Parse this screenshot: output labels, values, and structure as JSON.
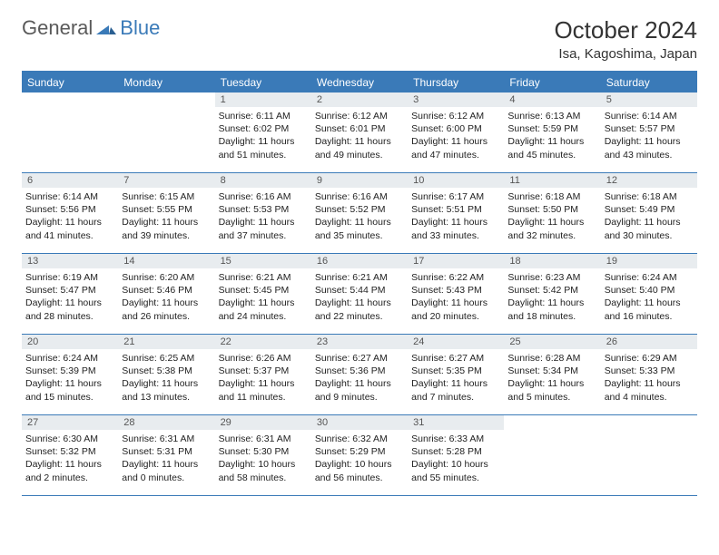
{
  "brand": {
    "part1": "General",
    "part2": "Blue"
  },
  "title": "October 2024",
  "location": "Isa, Kagoshima, Japan",
  "colors": {
    "header_bg": "#3a7ab8",
    "daynum_bg": "#e8ecef",
    "border": "#3a7ab8",
    "text": "#222222",
    "title_text": "#333333"
  },
  "day_names": [
    "Sunday",
    "Monday",
    "Tuesday",
    "Wednesday",
    "Thursday",
    "Friday",
    "Saturday"
  ],
  "weeks": [
    [
      null,
      null,
      {
        "n": "1",
        "sr": "Sunrise: 6:11 AM",
        "ss": "Sunset: 6:02 PM",
        "dl1": "Daylight: 11 hours",
        "dl2": "and 51 minutes."
      },
      {
        "n": "2",
        "sr": "Sunrise: 6:12 AM",
        "ss": "Sunset: 6:01 PM",
        "dl1": "Daylight: 11 hours",
        "dl2": "and 49 minutes."
      },
      {
        "n": "3",
        "sr": "Sunrise: 6:12 AM",
        "ss": "Sunset: 6:00 PM",
        "dl1": "Daylight: 11 hours",
        "dl2": "and 47 minutes."
      },
      {
        "n": "4",
        "sr": "Sunrise: 6:13 AM",
        "ss": "Sunset: 5:59 PM",
        "dl1": "Daylight: 11 hours",
        "dl2": "and 45 minutes."
      },
      {
        "n": "5",
        "sr": "Sunrise: 6:14 AM",
        "ss": "Sunset: 5:57 PM",
        "dl1": "Daylight: 11 hours",
        "dl2": "and 43 minutes."
      }
    ],
    [
      {
        "n": "6",
        "sr": "Sunrise: 6:14 AM",
        "ss": "Sunset: 5:56 PM",
        "dl1": "Daylight: 11 hours",
        "dl2": "and 41 minutes."
      },
      {
        "n": "7",
        "sr": "Sunrise: 6:15 AM",
        "ss": "Sunset: 5:55 PM",
        "dl1": "Daylight: 11 hours",
        "dl2": "and 39 minutes."
      },
      {
        "n": "8",
        "sr": "Sunrise: 6:16 AM",
        "ss": "Sunset: 5:53 PM",
        "dl1": "Daylight: 11 hours",
        "dl2": "and 37 minutes."
      },
      {
        "n": "9",
        "sr": "Sunrise: 6:16 AM",
        "ss": "Sunset: 5:52 PM",
        "dl1": "Daylight: 11 hours",
        "dl2": "and 35 minutes."
      },
      {
        "n": "10",
        "sr": "Sunrise: 6:17 AM",
        "ss": "Sunset: 5:51 PM",
        "dl1": "Daylight: 11 hours",
        "dl2": "and 33 minutes."
      },
      {
        "n": "11",
        "sr": "Sunrise: 6:18 AM",
        "ss": "Sunset: 5:50 PM",
        "dl1": "Daylight: 11 hours",
        "dl2": "and 32 minutes."
      },
      {
        "n": "12",
        "sr": "Sunrise: 6:18 AM",
        "ss": "Sunset: 5:49 PM",
        "dl1": "Daylight: 11 hours",
        "dl2": "and 30 minutes."
      }
    ],
    [
      {
        "n": "13",
        "sr": "Sunrise: 6:19 AM",
        "ss": "Sunset: 5:47 PM",
        "dl1": "Daylight: 11 hours",
        "dl2": "and 28 minutes."
      },
      {
        "n": "14",
        "sr": "Sunrise: 6:20 AM",
        "ss": "Sunset: 5:46 PM",
        "dl1": "Daylight: 11 hours",
        "dl2": "and 26 minutes."
      },
      {
        "n": "15",
        "sr": "Sunrise: 6:21 AM",
        "ss": "Sunset: 5:45 PM",
        "dl1": "Daylight: 11 hours",
        "dl2": "and 24 minutes."
      },
      {
        "n": "16",
        "sr": "Sunrise: 6:21 AM",
        "ss": "Sunset: 5:44 PM",
        "dl1": "Daylight: 11 hours",
        "dl2": "and 22 minutes."
      },
      {
        "n": "17",
        "sr": "Sunrise: 6:22 AM",
        "ss": "Sunset: 5:43 PM",
        "dl1": "Daylight: 11 hours",
        "dl2": "and 20 minutes."
      },
      {
        "n": "18",
        "sr": "Sunrise: 6:23 AM",
        "ss": "Sunset: 5:42 PM",
        "dl1": "Daylight: 11 hours",
        "dl2": "and 18 minutes."
      },
      {
        "n": "19",
        "sr": "Sunrise: 6:24 AM",
        "ss": "Sunset: 5:40 PM",
        "dl1": "Daylight: 11 hours",
        "dl2": "and 16 minutes."
      }
    ],
    [
      {
        "n": "20",
        "sr": "Sunrise: 6:24 AM",
        "ss": "Sunset: 5:39 PM",
        "dl1": "Daylight: 11 hours",
        "dl2": "and 15 minutes."
      },
      {
        "n": "21",
        "sr": "Sunrise: 6:25 AM",
        "ss": "Sunset: 5:38 PM",
        "dl1": "Daylight: 11 hours",
        "dl2": "and 13 minutes."
      },
      {
        "n": "22",
        "sr": "Sunrise: 6:26 AM",
        "ss": "Sunset: 5:37 PM",
        "dl1": "Daylight: 11 hours",
        "dl2": "and 11 minutes."
      },
      {
        "n": "23",
        "sr": "Sunrise: 6:27 AM",
        "ss": "Sunset: 5:36 PM",
        "dl1": "Daylight: 11 hours",
        "dl2": "and 9 minutes."
      },
      {
        "n": "24",
        "sr": "Sunrise: 6:27 AM",
        "ss": "Sunset: 5:35 PM",
        "dl1": "Daylight: 11 hours",
        "dl2": "and 7 minutes."
      },
      {
        "n": "25",
        "sr": "Sunrise: 6:28 AM",
        "ss": "Sunset: 5:34 PM",
        "dl1": "Daylight: 11 hours",
        "dl2": "and 5 minutes."
      },
      {
        "n": "26",
        "sr": "Sunrise: 6:29 AM",
        "ss": "Sunset: 5:33 PM",
        "dl1": "Daylight: 11 hours",
        "dl2": "and 4 minutes."
      }
    ],
    [
      {
        "n": "27",
        "sr": "Sunrise: 6:30 AM",
        "ss": "Sunset: 5:32 PM",
        "dl1": "Daylight: 11 hours",
        "dl2": "and 2 minutes."
      },
      {
        "n": "28",
        "sr": "Sunrise: 6:31 AM",
        "ss": "Sunset: 5:31 PM",
        "dl1": "Daylight: 11 hours",
        "dl2": "and 0 minutes."
      },
      {
        "n": "29",
        "sr": "Sunrise: 6:31 AM",
        "ss": "Sunset: 5:30 PM",
        "dl1": "Daylight: 10 hours",
        "dl2": "and 58 minutes."
      },
      {
        "n": "30",
        "sr": "Sunrise: 6:32 AM",
        "ss": "Sunset: 5:29 PM",
        "dl1": "Daylight: 10 hours",
        "dl2": "and 56 minutes."
      },
      {
        "n": "31",
        "sr": "Sunrise: 6:33 AM",
        "ss": "Sunset: 5:28 PM",
        "dl1": "Daylight: 10 hours",
        "dl2": "and 55 minutes."
      },
      null,
      null
    ]
  ]
}
